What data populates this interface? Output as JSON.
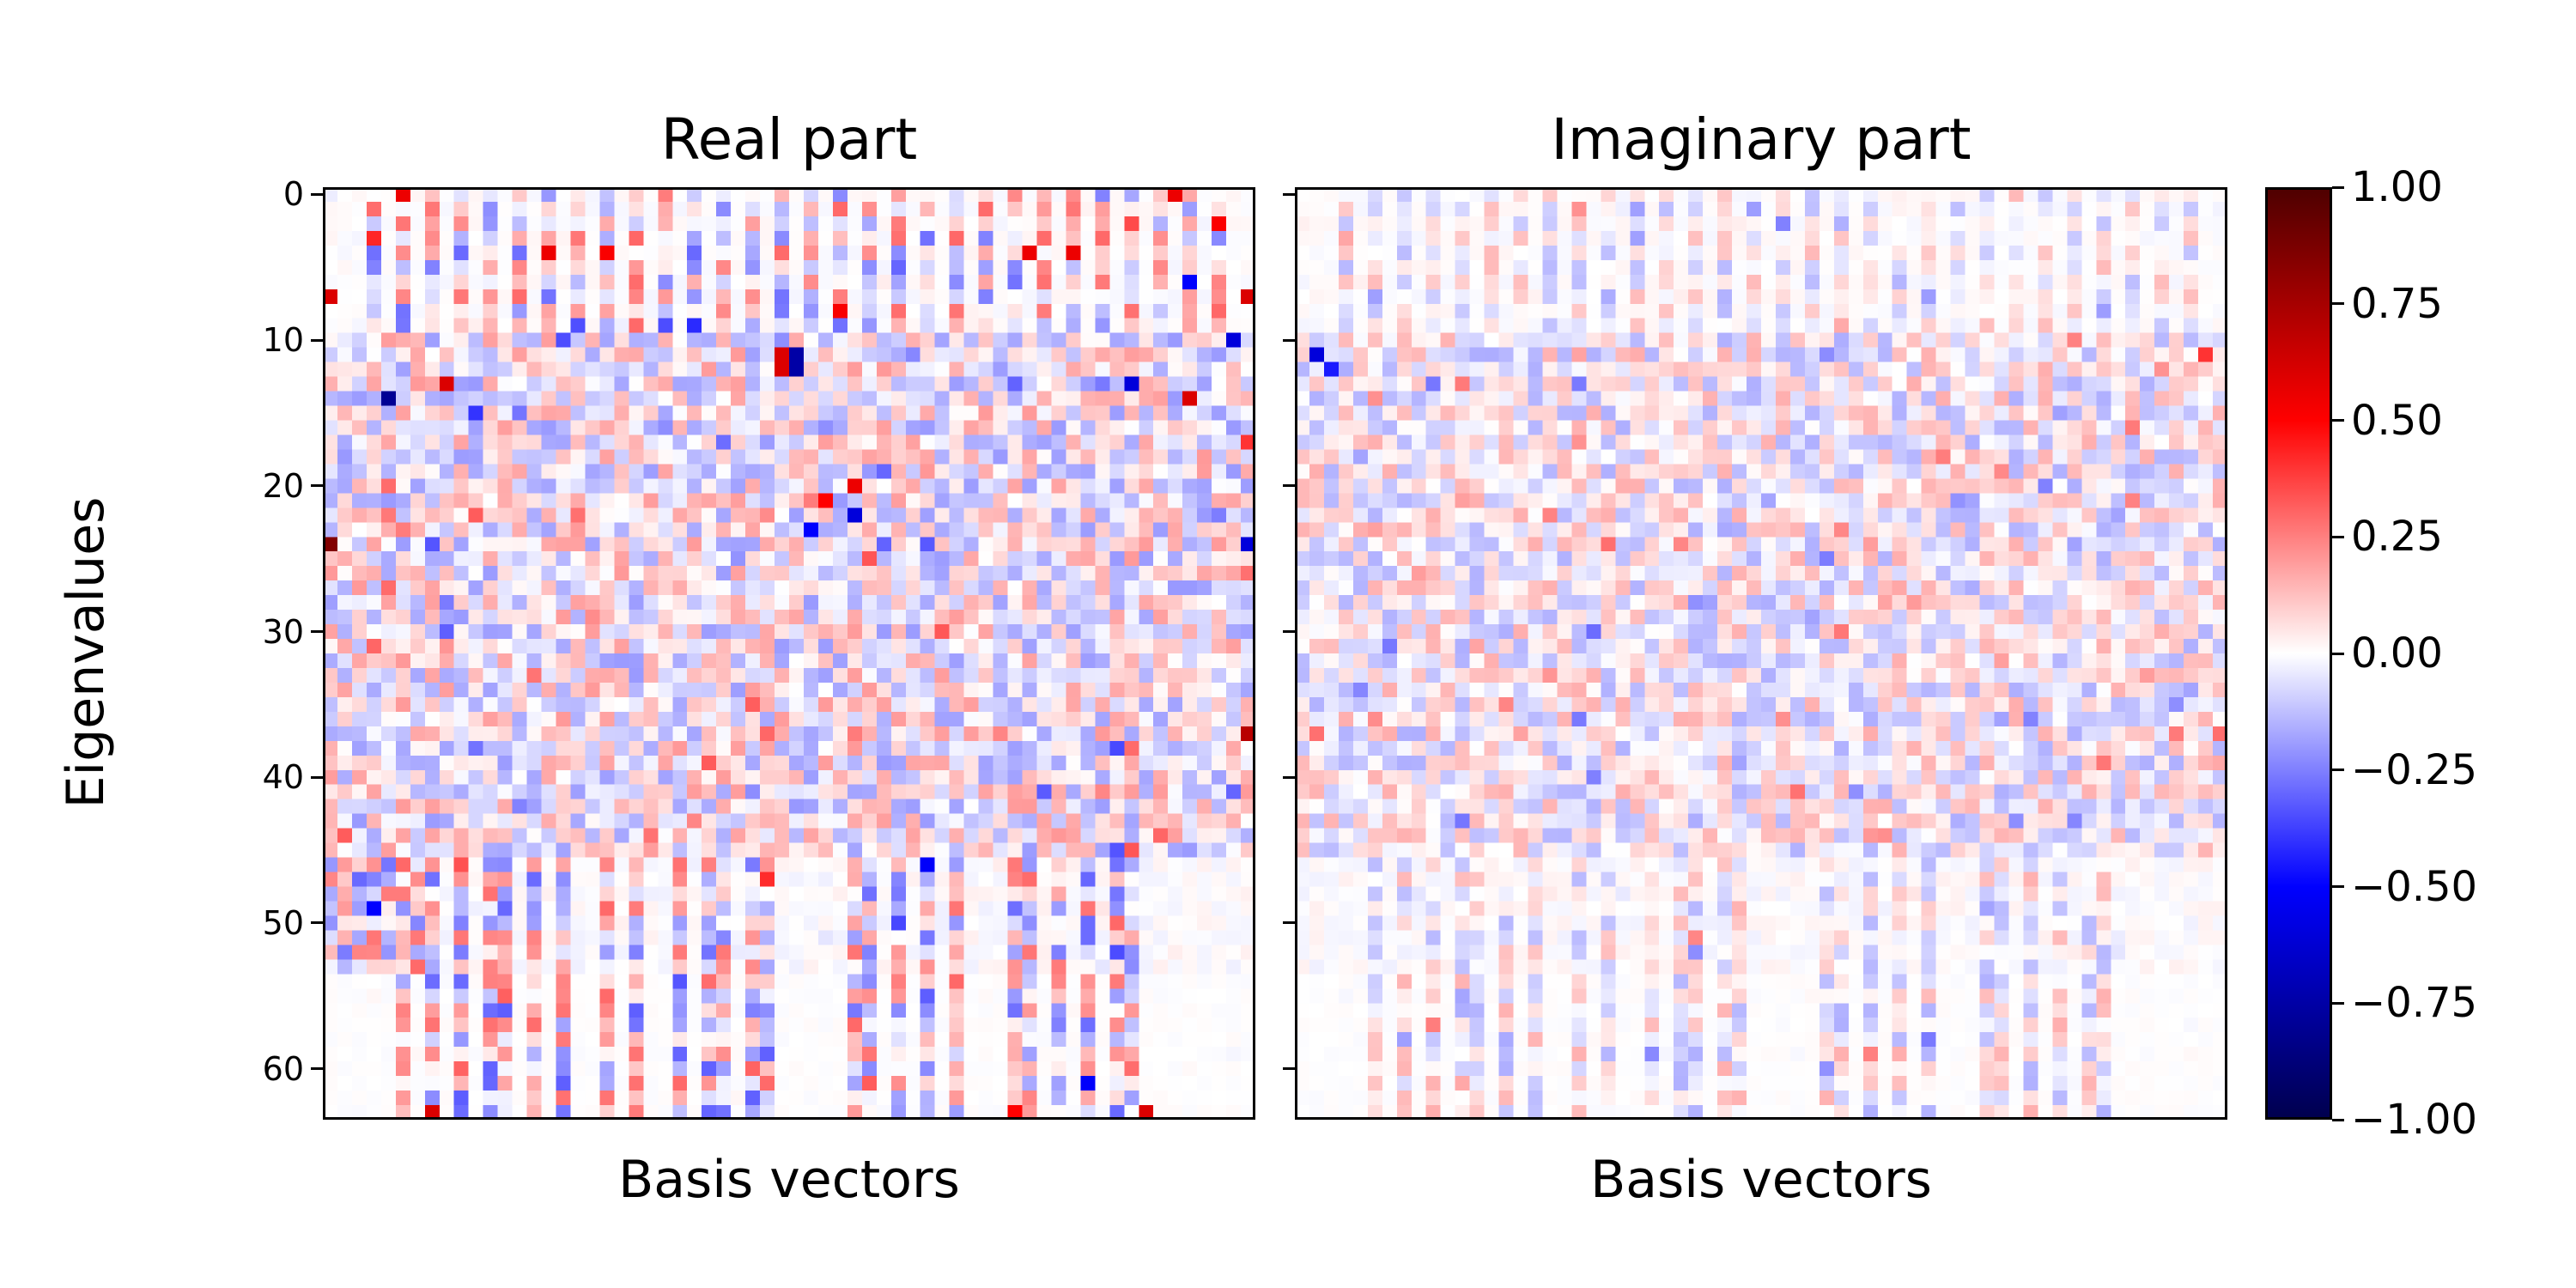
{
  "chart_data": {
    "type": "heatmap",
    "grid": false,
    "colormap": "seismic",
    "color_range": [
      -1.0,
      1.0
    ],
    "ylabel": "Eigenvalues",
    "yticks": [
      0,
      10,
      20,
      30,
      40,
      50,
      60
    ],
    "matrix_size": [
      64,
      64
    ],
    "panels": [
      {
        "title": "Real part",
        "xlabel": "Basis vectors"
      },
      {
        "title": "Imaginary part",
        "xlabel": "Basis vectors"
      }
    ],
    "colorbar": {
      "ticks": [
        "1.00",
        "0.75",
        "0.50",
        "0.25",
        "0.00",
        "−0.25",
        "−0.50",
        "−0.75",
        "−1.00"
      ],
      "tick_values": [
        1.0,
        0.75,
        0.5,
        0.25,
        0.0,
        -0.25,
        -0.5,
        -0.75,
        -1.0
      ]
    },
    "highlights_real": [
      {
        "row": 0,
        "col": 5,
        "value": 0.55
      },
      {
        "row": 0,
        "col": 58,
        "value": 0.55
      },
      {
        "row": 4,
        "col": 15,
        "value": 0.55
      },
      {
        "row": 4,
        "col": 48,
        "value": 0.55
      },
      {
        "row": 4,
        "col": 51,
        "value": 0.55
      },
      {
        "row": 7,
        "col": 0,
        "value": 0.6
      },
      {
        "row": 7,
        "col": 63,
        "value": 0.6
      },
      {
        "row": 9,
        "col": 23,
        "value": -0.35
      },
      {
        "row": 10,
        "col": 16,
        "value": -0.35
      },
      {
        "row": 10,
        "col": 62,
        "value": -0.6
      },
      {
        "row": 11,
        "col": 31,
        "value": 0.6
      },
      {
        "row": 11,
        "col": 32,
        "value": -0.75
      },
      {
        "row": 12,
        "col": 31,
        "value": 0.6
      },
      {
        "row": 12,
        "col": 32,
        "value": -0.75
      },
      {
        "row": 13,
        "col": 8,
        "value": 0.6
      },
      {
        "row": 13,
        "col": 55,
        "value": -0.6
      },
      {
        "row": 14,
        "col": 4,
        "value": -0.8
      },
      {
        "row": 14,
        "col": 59,
        "value": 0.6
      },
      {
        "row": 15,
        "col": 10,
        "value": -0.4
      },
      {
        "row": 17,
        "col": 63,
        "value": 0.4
      },
      {
        "row": 20,
        "col": 36,
        "value": 0.55
      },
      {
        "row": 21,
        "col": 34,
        "value": 0.5
      },
      {
        "row": 22,
        "col": 36,
        "value": -0.6
      },
      {
        "row": 23,
        "col": 33,
        "value": -0.5
      },
      {
        "row": 24,
        "col": 0,
        "value": 0.85
      },
      {
        "row": 24,
        "col": 63,
        "value": -0.6
      },
      {
        "row": 37,
        "col": 63,
        "value": 0.7
      },
      {
        "row": 63,
        "col": 7,
        "value": 0.6
      },
      {
        "row": 63,
        "col": 56,
        "value": 0.6
      }
    ],
    "highlights_imaginary": [
      {
        "row": 11,
        "col": 1,
        "value": -0.6
      },
      {
        "row": 11,
        "col": 62,
        "value": 0.4
      },
      {
        "row": 12,
        "col": 2,
        "value": -0.45
      }
    ]
  }
}
